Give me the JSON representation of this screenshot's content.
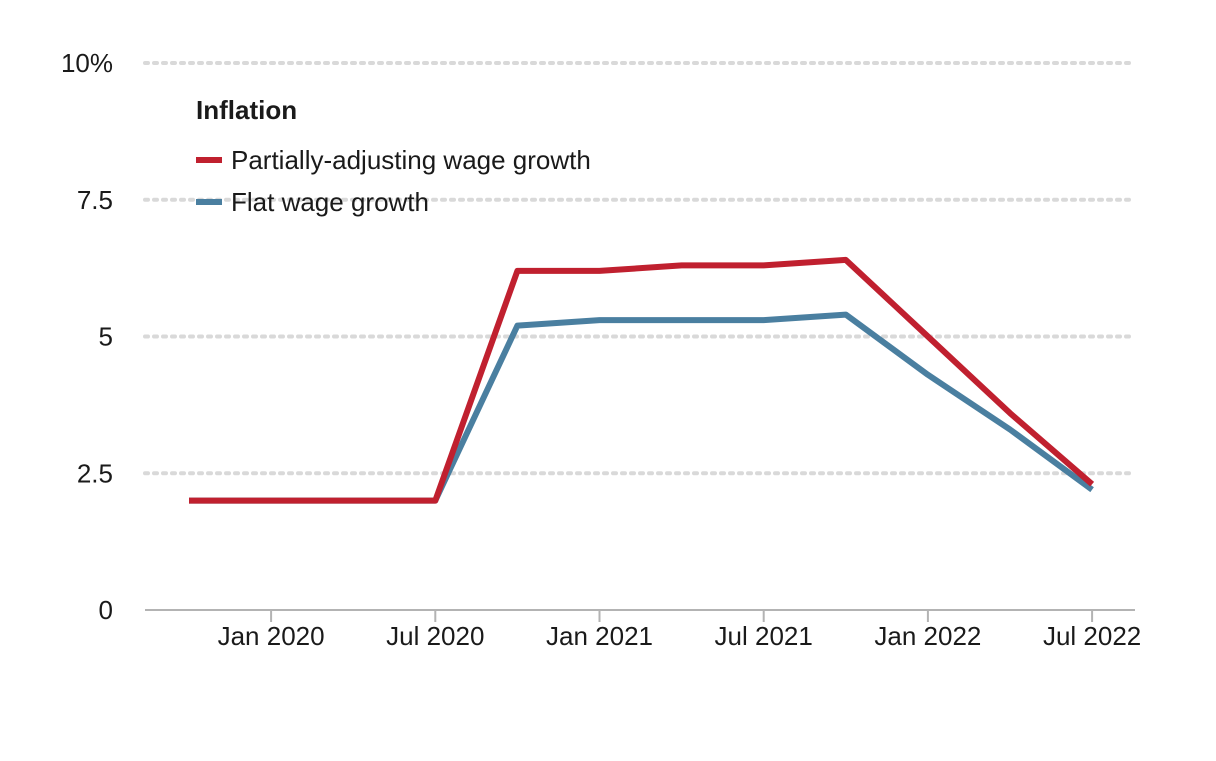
{
  "chart_data": {
    "type": "line",
    "legend_title": "Inflation",
    "legend_position": "top-left",
    "x": [
      "Oct 2019",
      "Jan 2020",
      "Apr 2020",
      "Jul 2020",
      "Oct 2020",
      "Jan 2021",
      "Apr 2021",
      "Jul 2021",
      "Oct 2021",
      "Jan 2022",
      "Apr 2022",
      "Jul 2022"
    ],
    "series": [
      {
        "name": "Partially-adjusting wage growth",
        "color": "#c0202f",
        "values": [
          2.0,
          2.0,
          2.0,
          2.0,
          6.2,
          6.2,
          6.3,
          6.3,
          6.4,
          5.0,
          3.6,
          2.3
        ]
      },
      {
        "name": "Flat wage growth",
        "color": "#4a7fa0",
        "values": [
          2.0,
          2.0,
          2.0,
          2.0,
          5.2,
          5.3,
          5.3,
          5.3,
          5.4,
          4.3,
          3.3,
          2.2
        ]
      }
    ],
    "x_ticks": [
      "Jan 2020",
      "Jul 2020",
      "Jan 2021",
      "Jul 2021",
      "Jan 2022",
      "Jul 2022"
    ],
    "y_ticks": [
      {
        "value": 0,
        "label": "0"
      },
      {
        "value": 2.5,
        "label": "2.5"
      },
      {
        "value": 5,
        "label": "5"
      },
      {
        "value": 7.5,
        "label": "7.5"
      },
      {
        "value": 10,
        "label": "10%"
      }
    ],
    "ylim": [
      0,
      10
    ],
    "grid": true
  }
}
